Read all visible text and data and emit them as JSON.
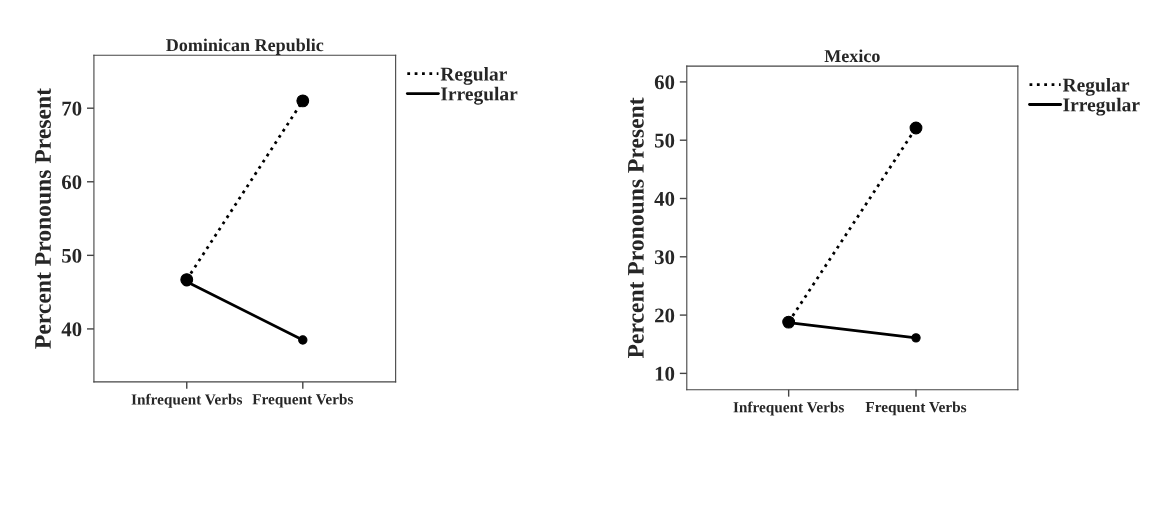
{
  "chart_data": [
    {
      "type": "line",
      "title": "Dominican Republic",
      "ylabel": "Percent Pronouns Present",
      "categories": [
        "Infrequent Verbs",
        "Frequent Verbs"
      ],
      "ylim": [
        32.8,
        77.2
      ],
      "yticks": [
        40,
        50,
        60,
        70
      ],
      "marker": "circle",
      "legend": "top right",
      "grid": false,
      "series": [
        {
          "name": "Regular",
          "color": "#000000",
          "line_style": "dotted",
          "values": [
            46.7,
            71.0
          ]
        },
        {
          "name": "Irregular",
          "color": "#000000",
          "line_style": "solid",
          "values": [
            46.4,
            38.5
          ]
        }
      ]
    },
    {
      "type": "line",
      "title": "Mexico",
      "ylabel": "Percent Pronouns Present",
      "categories": [
        "Infrequent Verbs",
        "Frequent Verbs"
      ],
      "ylim": [
        7.2,
        62.7
      ],
      "yticks": [
        10,
        20,
        30,
        40,
        50,
        60
      ],
      "marker": "circle",
      "legend": "top right",
      "grid": false,
      "series": [
        {
          "name": "Regular",
          "color": "#000000",
          "line_style": "dotted",
          "values": [
            18.8,
            52.1
          ]
        },
        {
          "name": "Irregular",
          "color": "#000000",
          "line_style": "solid",
          "values": [
            18.7,
            16.1
          ]
        }
      ]
    }
  ]
}
